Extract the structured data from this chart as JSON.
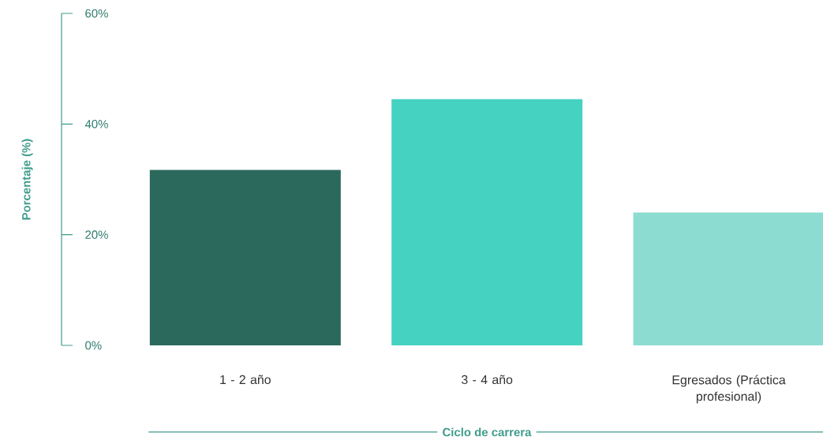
{
  "chart_data": {
    "type": "bar",
    "categories": [
      "1 - 2 año",
      "3 - 4 año",
      "Egresados (Práctica profesional)"
    ],
    "values": [
      31.7,
      44.5,
      24
    ],
    "colors": [
      "#2c695d",
      "#46d2c1",
      "#8cdcd1"
    ],
    "ylabel": "Porcentaje (%)",
    "xlabel": "Ciclo de carrera",
    "ylim": [
      0,
      60
    ],
    "yticks": [
      {
        "value": 0,
        "label": "0%"
      },
      {
        "value": 20,
        "label": "20%"
      },
      {
        "value": 40,
        "label": "40%"
      },
      {
        "value": 60,
        "label": "60%"
      }
    ],
    "grid": false
  }
}
